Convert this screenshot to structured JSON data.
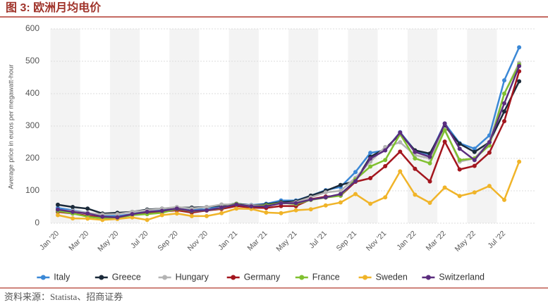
{
  "chart_data": {
    "type": "line",
    "title": "图 3:  欧洲月均电价",
    "source": "资料来源：Statista、招商证券",
    "y_label": "Average price in euros per megawatt-hour",
    "categories": [
      "Jan '20",
      null,
      "Mar '20",
      null,
      "May '20",
      null,
      "Jul '20",
      null,
      "Sep '20",
      null,
      "Nov '20",
      null,
      "Jan '21",
      null,
      "Mar '21",
      null,
      "May '21",
      null,
      "Jul '21",
      null,
      "Sep '21",
      null,
      "Nov '21",
      null,
      "Jan '22",
      null,
      "Mar '22",
      null,
      "May '22",
      null,
      "Jul '22",
      null
    ],
    "ylim": [
      0,
      600
    ],
    "yticks": [
      0,
      100,
      200,
      300,
      400,
      500,
      600
    ],
    "grid": true,
    "legend": "bottom",
    "series": [
      {
        "name": "Italy",
        "color": "#3b88d6",
        "values": [
          47,
          40,
          32,
          24,
          22,
          28,
          38,
          40,
          49,
          44,
          42,
          55,
          60,
          56,
          60,
          70,
          70,
          85,
          102,
          112,
          158,
          217,
          225,
          281,
          224,
          212,
          308,
          247,
          230,
          271,
          441,
          543
        ]
      },
      {
        "name": "Greece",
        "color": "#1b2a3a",
        "values": [
          57,
          50,
          45,
          30,
          32,
          35,
          42,
          45,
          48,
          48,
          50,
          55,
          60,
          55,
          58,
          65,
          68,
          85,
          100,
          118,
          130,
          205,
          230,
          275,
          225,
          215,
          300,
          245,
          220,
          250,
          345,
          438
        ]
      },
      {
        "name": "Hungary",
        "color": "#b4b4b4",
        "values": [
          40,
          38,
          32,
          27,
          28,
          35,
          40,
          45,
          50,
          45,
          50,
          58,
          58,
          55,
          55,
          60,
          65,
          80,
          95,
          100,
          140,
          190,
          235,
          250,
          210,
          200,
          290,
          190,
          200,
          250,
          400,
          495
        ]
      },
      {
        "name": "Germany",
        "color": "#a3161e",
        "values": [
          35,
          30,
          23,
          17,
          18,
          26,
          30,
          35,
          40,
          33,
          39,
          44,
          53,
          48,
          47,
          53,
          53,
          74,
          82,
          85,
          128,
          139,
          176,
          221,
          168,
          129,
          252,
          166,
          177,
          218,
          315,
          469
        ]
      },
      {
        "name": "France",
        "color": "#80c030",
        "values": [
          38,
          30,
          20,
          15,
          16,
          25,
          28,
          32,
          44,
          37,
          40,
          47,
          60,
          51,
          55,
          63,
          59,
          72,
          79,
          85,
          135,
          175,
          195,
          275,
          200,
          185,
          287,
          195,
          200,
          240,
          400,
          490
        ]
      },
      {
        "name": "Sweden",
        "color": "#f0b429",
        "values": [
          25,
          15,
          14,
          10,
          13,
          18,
          10,
          25,
          30,
          22,
          22,
          31,
          45,
          44,
          33,
          31,
          40,
          43,
          55,
          64,
          90,
          60,
          80,
          160,
          88,
          63,
          110,
          84,
          95,
          115,
          72,
          190
        ]
      },
      {
        "name": "Switzerland",
        "color": "#5b2d7e",
        "values": [
          42,
          35,
          30,
          20,
          18,
          28,
          35,
          38,
          45,
          38,
          40,
          48,
          58,
          52,
          52,
          62,
          62,
          73,
          80,
          90,
          130,
          200,
          225,
          280,
          220,
          205,
          308,
          230,
          195,
          250,
          370,
          485
        ]
      }
    ]
  }
}
